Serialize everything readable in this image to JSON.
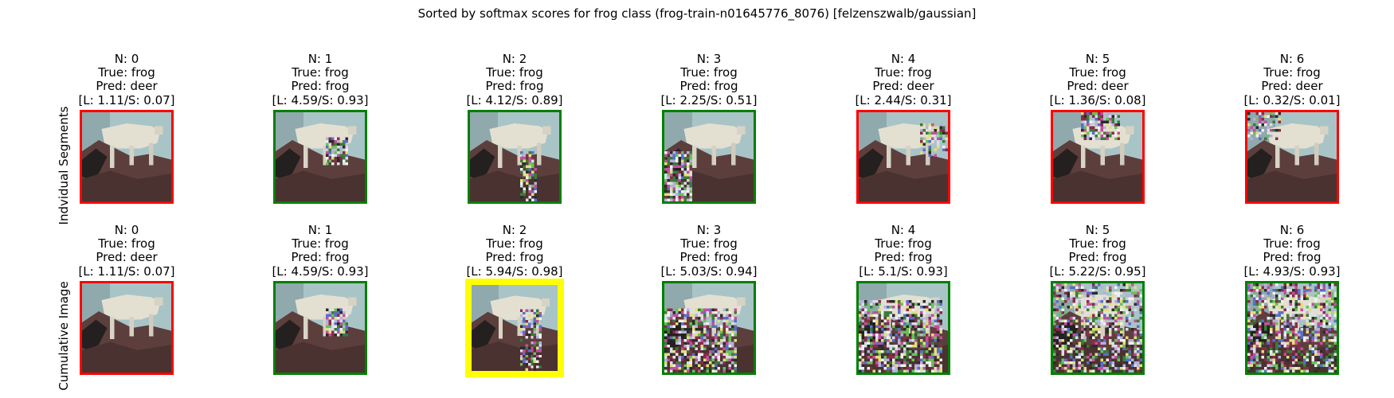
{
  "figure": {
    "title": "Sorted by softmax scores for frog class (frog-train-n01645776_8076) [felzenszwalb/gaussian]",
    "colors": {
      "correct": "#008000",
      "wrong": "#ff0000",
      "highlight": "#ffff00"
    }
  },
  "rows": [
    {
      "label": "Indvidual Segments",
      "panels": [
        {
          "n": "N: 0",
          "true": "True: frog",
          "pred": "Pred: deer",
          "scores": "[L: 1.11/S: 0.07]",
          "status": "wrong"
        },
        {
          "n": "N: 1",
          "true": "True: frog",
          "pred": "Pred: frog",
          "scores": "[L: 4.59/S: 0.93]",
          "status": "correct"
        },
        {
          "n": "N: 2",
          "true": "True: frog",
          "pred": "Pred: frog",
          "scores": "[L: 4.12/S: 0.89]",
          "status": "correct"
        },
        {
          "n": "N: 3",
          "true": "True: frog",
          "pred": "Pred: frog",
          "scores": "[L: 2.25/S: 0.51]",
          "status": "correct"
        },
        {
          "n": "N: 4",
          "true": "True: frog",
          "pred": "Pred: deer",
          "scores": "[L: 2.44/S: 0.31]",
          "status": "wrong"
        },
        {
          "n": "N: 5",
          "true": "True: frog",
          "pred": "Pred: deer",
          "scores": "[L: 1.36/S: 0.08]",
          "status": "wrong"
        },
        {
          "n": "N: 6",
          "true": "True: frog",
          "pred": "Pred: deer",
          "scores": "[L: 0.32/S: 0.01]",
          "status": "wrong"
        }
      ]
    },
    {
      "label": "Cumulative Image",
      "panels": [
        {
          "n": "N: 0",
          "true": "True: frog",
          "pred": "Pred: deer",
          "scores": "[L: 1.11/S: 0.07]",
          "status": "wrong"
        },
        {
          "n": "N: 1",
          "true": "True: frog",
          "pred": "Pred: frog",
          "scores": "[L: 4.59/S: 0.93]",
          "status": "correct"
        },
        {
          "n": "N: 2",
          "true": "True: frog",
          "pred": "Pred: frog",
          "scores": "[L: 5.94/S: 0.98]",
          "status": "highlight"
        },
        {
          "n": "N: 3",
          "true": "True: frog",
          "pred": "Pred: frog",
          "scores": "[L: 5.03/S: 0.94]",
          "status": "correct"
        },
        {
          "n": "N: 4",
          "true": "True: frog",
          "pred": "Pred: frog",
          "scores": "[L: 5.1/S: 0.93]",
          "status": "correct"
        },
        {
          "n": "N: 5",
          "true": "True: frog",
          "pred": "Pred: frog",
          "scores": "[L: 5.22/S: 0.95]",
          "status": "correct"
        },
        {
          "n": "N: 6",
          "true": "True: frog",
          "pred": "Pred: frog",
          "scores": "[L: 4.93/S: 0.93]",
          "status": "correct"
        }
      ]
    }
  ]
}
